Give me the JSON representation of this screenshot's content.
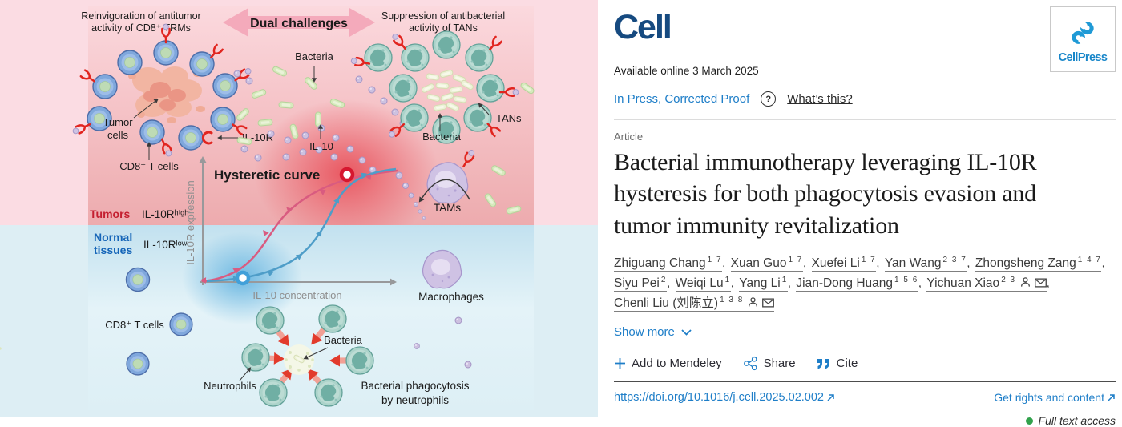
{
  "figure": {
    "challenge_left": [
      "Reinvigoration of antitumor",
      "activity of CD8⁺ TRMs"
    ],
    "banner": "Dual challenges",
    "challenge_right": [
      "Suppression of antibacterial",
      "activity of TANs"
    ],
    "bacteria_top": "Bacteria",
    "tumor_cells": [
      "Tumor",
      "cells"
    ],
    "cd8_trm": "CD8⁺ T cells",
    "il10r": "IL-10R",
    "il10": "IL-10",
    "tans": "TANs",
    "bacteria_tan": "Bacteria",
    "tams": "TAMs",
    "plot": {
      "title": "Hysteretic curve",
      "ylabel": "IL-10R expression",
      "xlabel": "IL-10 concentration"
    },
    "tumors": "Tumors",
    "il10r_high": "IL-10Rʰⁱᵍʰ",
    "normal_tissues": [
      "Normal",
      "tissues"
    ],
    "il10r_low": "IL-10Rˡᵒʷ",
    "cd8_normal": "CD8⁺ T cells",
    "neutrophils": "Neutrophils",
    "bacteria_phago": "Bacteria",
    "phagocytosis": [
      "Bacterial phagocytosis",
      "by neutrophils"
    ],
    "macrophages": "Macrophages"
  },
  "header": {
    "journal": "Cell",
    "publisher": "CellPress",
    "available": "Available online 3 March 2025",
    "in_press": "In Press, Corrected Proof",
    "help": "?",
    "whats_this": "What’s this?"
  },
  "article": {
    "kicker": "Article",
    "title_lines": [
      "Bacterial immunotherapy leveraging IL-10R",
      "hysteresis for both phagocytosis evasion and",
      "tumor immunity revitalization"
    ]
  },
  "authors": [
    {
      "name": "Zhiguang Chang",
      "sup": "1 7"
    },
    {
      "name": "Xuan Guo",
      "sup": "1 7"
    },
    {
      "name": "Xuefei Li",
      "sup": "1 7"
    },
    {
      "name": "Yan Wang",
      "sup": "2 3 7"
    },
    {
      "name": "Zhongsheng Zang",
      "sup": "1 4 7"
    },
    {
      "name": "Siyu Pei",
      "sup": "2"
    },
    {
      "name": "Weiqi Lu",
      "sup": "1"
    },
    {
      "name": "Yang Li",
      "sup": "1"
    },
    {
      "name": "Jian-Dong Huang",
      "sup": "1 5 6"
    },
    {
      "name": "Yichuan Xiao",
      "sup": "2 3",
      "person": true,
      "mail": true
    },
    {
      "name": "Chenli Liu (刘陈立)",
      "sup": "1 3 8",
      "person": true,
      "mail": true
    }
  ],
  "actions": {
    "show_more": "Show more",
    "mendeley": "Add to Mendeley",
    "share": "Share",
    "cite": "Cite"
  },
  "footer": {
    "doi": "https://doi.org/10.1016/j.cell.2025.02.002",
    "rights": "Get rights and content",
    "access": "Full text access"
  },
  "colors": {
    "link": "#1e7ec8",
    "journal_navy": "#164a80",
    "cellpress_blue": "#1f9ad6",
    "access_green": "#31a24c",
    "tumor_red": "#c41f30",
    "normal_blue": "#1565b8"
  }
}
